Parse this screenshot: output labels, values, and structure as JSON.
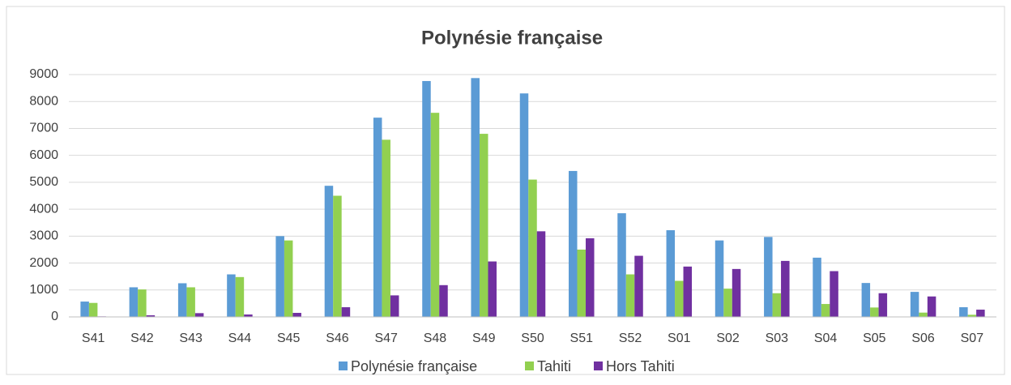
{
  "chart_data": {
    "type": "bar",
    "title": "Polynésie française",
    "categories": [
      "S41",
      "S42",
      "S43",
      "S44",
      "S45",
      "S46",
      "S47",
      "S48",
      "S49",
      "S50",
      "S51",
      "S52",
      "S01",
      "S02",
      "S03",
      "S04",
      "S05",
      "S06",
      "S07"
    ],
    "series": [
      {
        "name": "Polynésie française",
        "color": "#5b9bd5",
        "values": [
          570,
          1100,
          1250,
          1580,
          3000,
          4870,
          7400,
          8760,
          8870,
          8300,
          5420,
          3850,
          3220,
          2840,
          2970,
          2200,
          1260,
          930,
          360
        ]
      },
      {
        "name": "Tahiti",
        "color": "#92d050",
        "values": [
          520,
          1020,
          1100,
          1480,
          2840,
          4500,
          6580,
          7580,
          6800,
          5100,
          2500,
          1580,
          1340,
          1050,
          880,
          480,
          350,
          160,
          80
        ]
      },
      {
        "name": "Hors Tahiti",
        "color": "#7030a0",
        "values": [
          20,
          60,
          140,
          90,
          150,
          360,
          800,
          1180,
          2060,
          3180,
          2920,
          2270,
          1870,
          1780,
          2080,
          1700,
          880,
          760,
          270
        ]
      }
    ],
    "ylim": [
      0,
      9000
    ],
    "yticks": [
      0,
      1000,
      2000,
      3000,
      4000,
      5000,
      6000,
      7000,
      8000,
      9000
    ],
    "grid": true,
    "legend": "bottom"
  }
}
